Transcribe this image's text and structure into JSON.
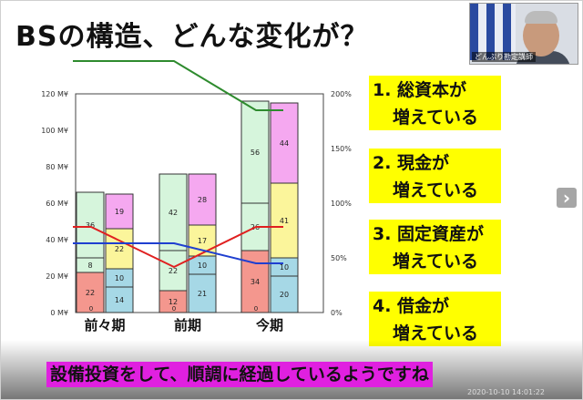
{
  "slide": {
    "title": "BSの構造、どんな変化が？",
    "caption": "設備投資をして、順調に経過しているようですね",
    "timestamp": "2020-10-10 14:01:22",
    "webcam_name": "どんぶり勘定講師"
  },
  "points": [
    {
      "line1": "1. 総資本が",
      "line2": "増えている"
    },
    {
      "line1": "2. 現金が",
      "line2": "増えている"
    },
    {
      "line1": "3. 固定資産が",
      "line2": "増えている"
    },
    {
      "line1": "4. 借金が",
      "line2": "増えている"
    }
  ],
  "chart_data": {
    "type": "bar",
    "categories": [
      "前々期",
      "前期",
      "今期"
    ],
    "ylim": [
      0,
      120
    ],
    "yticks": [
      "0 M¥",
      "20 M¥",
      "40 M¥",
      "60 M¥",
      "80 M¥",
      "100 M¥",
      "120 M¥"
    ],
    "y2lim": [
      0,
      200
    ],
    "y2ticks": [
      "0%",
      "50%",
      "100%",
      "150%",
      "200%"
    ],
    "assets_stack": [
      {
        "segments": [
          22,
          8,
          36
        ],
        "labels": [
          "22",
          "8",
          "36"
        ]
      },
      {
        "segments": [
          12,
          22,
          42
        ],
        "labels": [
          "12",
          "22",
          "42"
        ]
      },
      {
        "segments": [
          34,
          26,
          56
        ],
        "labels": [
          "34",
          "26",
          "56"
        ]
      }
    ],
    "liabilities_stack": [
      {
        "segments": [
          14,
          10,
          22,
          19
        ],
        "labels": [
          "14",
          "10",
          "22",
          "19"
        ]
      },
      {
        "segments": [
          21,
          10,
          17,
          28
        ],
        "labels": [
          "21",
          "10",
          "17",
          "28"
        ]
      },
      {
        "segments": [
          20,
          10,
          41,
          44
        ],
        "labels": [
          "20",
          "10",
          "41",
          "44"
        ]
      }
    ],
    "asset_colors": [
      "#f4978e",
      "#d6f5dc",
      "#d6f5dc"
    ],
    "liability_colors": [
      "#a6d8e6",
      "#a6d8e6",
      "#fbf59b",
      "#f5a8f0"
    ],
    "zero_label": "0",
    "green_line": [
      230,
      230,
      185
    ],
    "red_line": [
      47,
      25,
      47
    ],
    "blue_line": [
      38,
      38,
      27
    ],
    "line_colors": {
      "green": "#2e8b2e",
      "red": "#e02020",
      "blue": "#1f3fd0"
    }
  }
}
